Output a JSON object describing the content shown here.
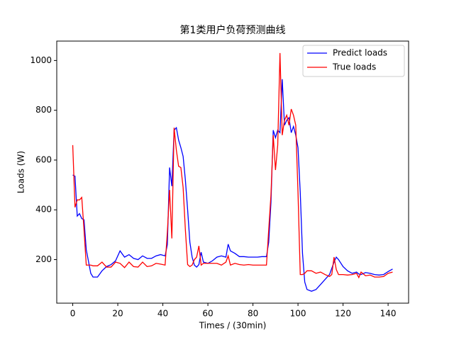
{
  "chart_data": {
    "type": "line",
    "title": "第1类用户负荷预测曲线",
    "x_label": "Times / (30min)",
    "y_label": "Loads (W)",
    "x": [
      0,
      1,
      2,
      3,
      4,
      5,
      6,
      8,
      9,
      11,
      13,
      15,
      17,
      19,
      21,
      23,
      25,
      27,
      29,
      31,
      33,
      35,
      37,
      39,
      41,
      42,
      43,
      44,
      45,
      46,
      47,
      48,
      49,
      50,
      51,
      52,
      53,
      54,
      55,
      56,
      57,
      58,
      60,
      62,
      64,
      66,
      68,
      69,
      70,
      72,
      74,
      76,
      78,
      80,
      82,
      84,
      86,
      87,
      88,
      89,
      90,
      91,
      92,
      93,
      94,
      95,
      96,
      97,
      98,
      99,
      100,
      101,
      102,
      103,
      104,
      106,
      108,
      110,
      112,
      114,
      115,
      116,
      117,
      118,
      120,
      122,
      124,
      126,
      127,
      128,
      130,
      132,
      134,
      136,
      138,
      140,
      142
    ],
    "series": [
      {
        "name": "Predict loads",
        "color": "#0000ff",
        "values": [
          540,
          535,
          375,
          385,
          365,
          360,
          240,
          145,
          130,
          130,
          155,
          172,
          180,
          195,
          235,
          210,
          220,
          205,
          200,
          215,
          205,
          205,
          215,
          220,
          215,
          260,
          570,
          495,
          720,
          730,
          680,
          650,
          615,
          520,
          400,
          270,
          210,
          178,
          170,
          180,
          230,
          190,
          185,
          195,
          210,
          215,
          210,
          262,
          235,
          225,
          212,
          212,
          210,
          210,
          210,
          212,
          212,
          270,
          430,
          720,
          690,
          720,
          710,
          925,
          740,
          760,
          770,
          710,
          735,
          700,
          650,
          470,
          225,
          110,
          80,
          73,
          80,
          100,
          120,
          140,
          165,
          190,
          210,
          200,
          172,
          155,
          145,
          150,
          142,
          140,
          148,
          145,
          140,
          138,
          140,
          152,
          162
        ]
      },
      {
        "name": "True loads",
        "color": "#ff0000",
        "values": [
          660,
          410,
          440,
          440,
          450,
          320,
          178,
          178,
          175,
          175,
          190,
          170,
          170,
          190,
          185,
          168,
          190,
          172,
          170,
          190,
          172,
          175,
          185,
          182,
          178,
          310,
          480,
          285,
          730,
          640,
          575,
          570,
          490,
          320,
          180,
          172,
          178,
          200,
          210,
          255,
          178,
          185,
          185,
          185,
          185,
          178,
          190,
          215,
          178,
          185,
          180,
          178,
          180,
          178,
          178,
          178,
          178,
          320,
          460,
          700,
          560,
          660,
          1030,
          700,
          760,
          780,
          740,
          805,
          780,
          740,
          470,
          140,
          140,
          145,
          155,
          155,
          145,
          150,
          140,
          132,
          140,
          210,
          160,
          140,
          140,
          138,
          140,
          145,
          128,
          150,
          135,
          138,
          130,
          130,
          132,
          145,
          150
        ]
      }
    ],
    "xlim": [
      -7.1,
      149.1
    ],
    "ylim": [
      25,
      1078
    ],
    "xticks": [
      0,
      20,
      40,
      60,
      80,
      100,
      120,
      140
    ],
    "yticks": [
      200,
      400,
      600,
      800,
      1000
    ],
    "legend": "upper right"
  }
}
